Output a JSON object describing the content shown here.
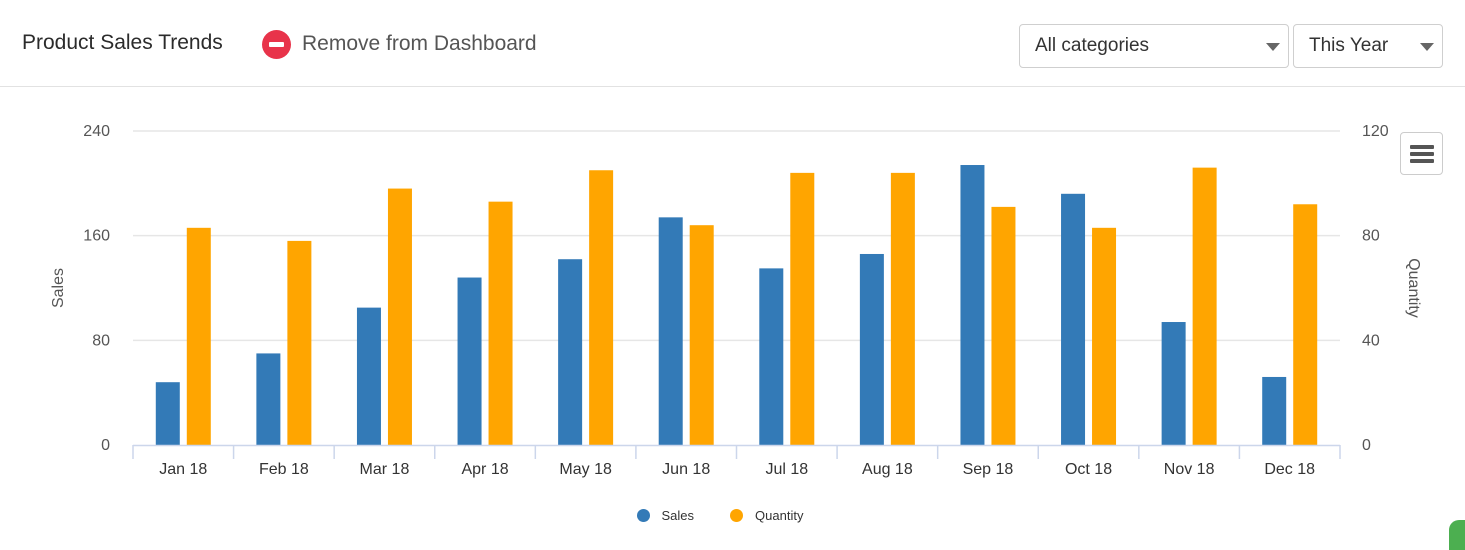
{
  "header": {
    "title": "Product Sales Trends",
    "remove_label": "Remove from Dashboard",
    "remove_icon": "remove-circle-icon",
    "category_select": {
      "value": "All categories"
    },
    "period_select": {
      "value": "This Year"
    }
  },
  "chart_menu": {
    "icon": "hamburger-menu-icon"
  },
  "colors": {
    "sales": "#337ab7",
    "quantity": "#ffa500",
    "remove": "#e8334a",
    "grid": "#e6e6e6",
    "axis": "#ccd6eb"
  },
  "chart_data": {
    "type": "bar",
    "categories": [
      "Jan 18",
      "Feb 18",
      "Mar 18",
      "Apr 18",
      "May 18",
      "Jun 18",
      "Jul 18",
      "Aug 18",
      "Sep 18",
      "Oct 18",
      "Nov 18",
      "Dec 18"
    ],
    "series": [
      {
        "name": "Sales",
        "axis": "left",
        "color": "#337ab7",
        "values": [
          48,
          70,
          105,
          128,
          142,
          174,
          135,
          146,
          214,
          192,
          94,
          52
        ]
      },
      {
        "name": "Quantity",
        "axis": "right",
        "color": "#ffa500",
        "values": [
          83,
          78,
          98,
          93,
          105,
          84,
          104,
          104,
          91,
          83,
          106,
          92
        ]
      }
    ],
    "title": "",
    "xlabel": "",
    "ylabel": "Sales",
    "ylabel_right": "Quantity",
    "ylim": [
      0,
      240
    ],
    "ylim_right": [
      0,
      120
    ],
    "yticks": [
      0,
      80,
      160,
      240
    ],
    "yticks_right": [
      0,
      40,
      80,
      120
    ],
    "grid": true,
    "legend": "bottom-center"
  }
}
